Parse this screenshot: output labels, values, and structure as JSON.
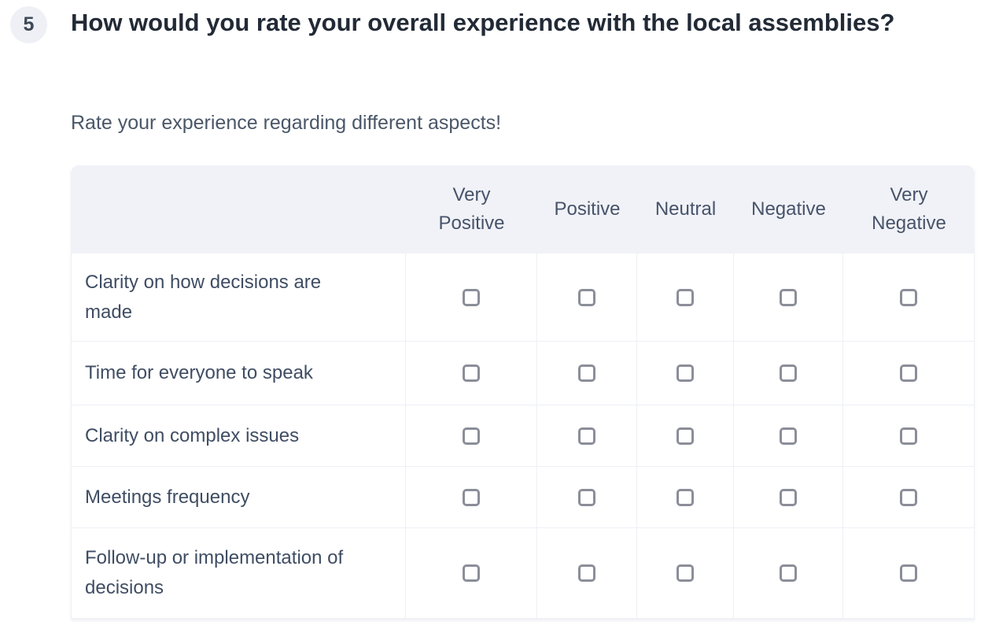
{
  "question": {
    "number": "5",
    "title": "How would you rate your overall experience with the local assemblies?",
    "subtitle": "Rate your experience regarding different aspects!"
  },
  "matrix": {
    "columns": [
      "Very Positive",
      "Positive",
      "Neutral",
      "Negative",
      "Very Negative"
    ],
    "rows": [
      "Clarity on how decisions are made",
      "Time for everyone to speak",
      "Clarity on complex issues",
      "Meetings frequency",
      "Follow-up or implementation of decisions"
    ],
    "checkbox_state": "unchecked"
  },
  "colors": {
    "header_bg": "#f1f2f7",
    "badge_bg": "#eef0f5",
    "title_text": "#222a36",
    "subtitle_text": "#4a5768",
    "row_label_text": "#3f4d63",
    "column_header_text": "#46536a",
    "checkbox_border": "#8b8e99",
    "divider": "#eef0f6"
  }
}
